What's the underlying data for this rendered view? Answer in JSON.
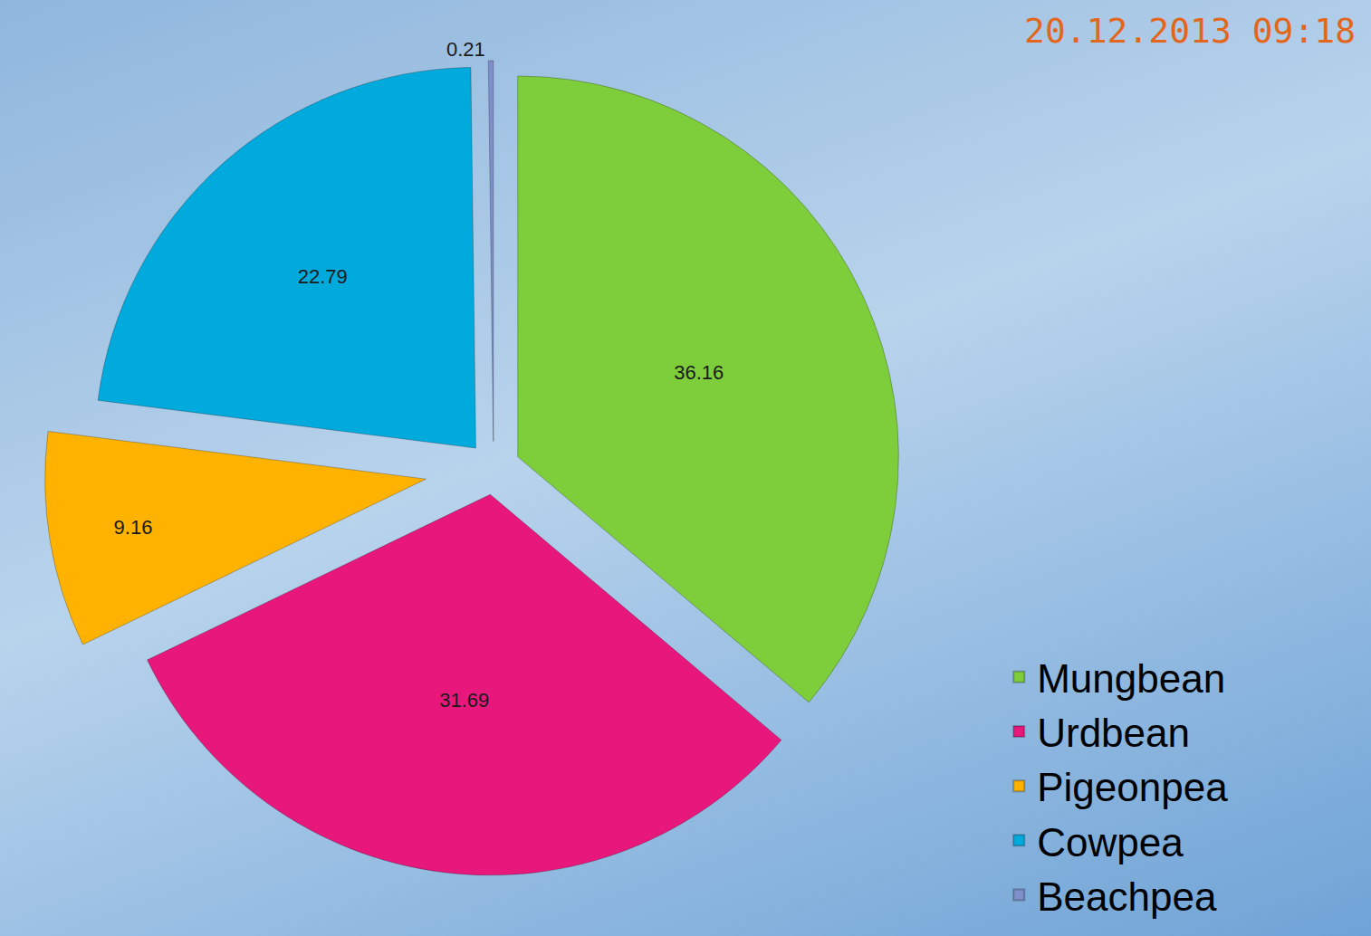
{
  "chart_data": {
    "type": "pie",
    "categories": [
      "Mungbean",
      "Urdbean",
      "Pigeonpea",
      "Cowpea",
      "Beachpea"
    ],
    "values": [
      36.16,
      31.69,
      9.16,
      22.79,
      0.21
    ],
    "colors": [
      "#7dce3a",
      "#e8177c",
      "#ffb300",
      "#00aadc",
      "#7f8fca"
    ],
    "data_labels": true,
    "legend": "bottom right",
    "annotations": [
      "20.12.2013 09:18"
    ]
  }
}
